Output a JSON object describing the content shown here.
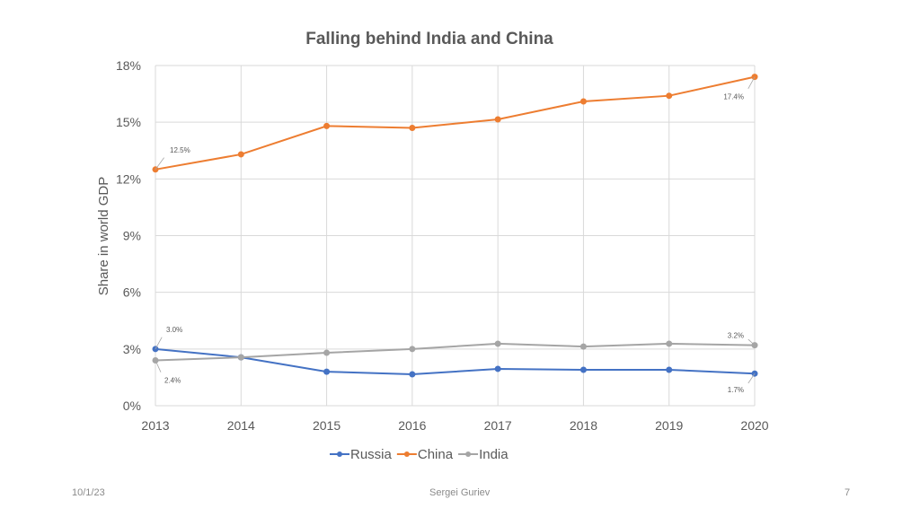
{
  "chart_data": {
    "type": "line",
    "title": "Falling behind India and China",
    "xlabel": "",
    "ylabel": "Share in world GDP",
    "categories": [
      "2013",
      "2014",
      "2015",
      "2016",
      "2017",
      "2018",
      "2019",
      "2020"
    ],
    "ylim": [
      0,
      18
    ],
    "yticks": [
      "0%",
      "3%",
      "6%",
      "9%",
      "12%",
      "15%",
      "18%"
    ],
    "grid": true,
    "legend": "bottom",
    "series": [
      {
        "name": "Russia",
        "color": "#4472c4",
        "values": [
          3.0,
          2.56,
          1.8,
          1.66,
          1.95,
          1.9,
          1.9,
          1.7
        ],
        "labels": [
          {
            "index": 0,
            "text": "3.0%"
          },
          {
            "index": 7,
            "text": "1.7%"
          }
        ]
      },
      {
        "name": "China",
        "color": "#ed7d31",
        "values": [
          12.5,
          13.3,
          14.8,
          14.7,
          15.15,
          16.1,
          16.4,
          17.4
        ],
        "labels": [
          {
            "index": 0,
            "text": "12.5%"
          },
          {
            "index": 7,
            "text": "17.4%"
          }
        ]
      },
      {
        "name": "India",
        "color": "#a5a5a5",
        "values": [
          2.4,
          2.56,
          2.8,
          3.0,
          3.28,
          3.13,
          3.28,
          3.2
        ],
        "labels": [
          {
            "index": 0,
            "text": "2.4%"
          },
          {
            "index": 7,
            "text": "3.2%"
          }
        ]
      }
    ]
  },
  "footer": {
    "date": "10/1/23",
    "author": "Sergei Guriev",
    "page": "7"
  }
}
